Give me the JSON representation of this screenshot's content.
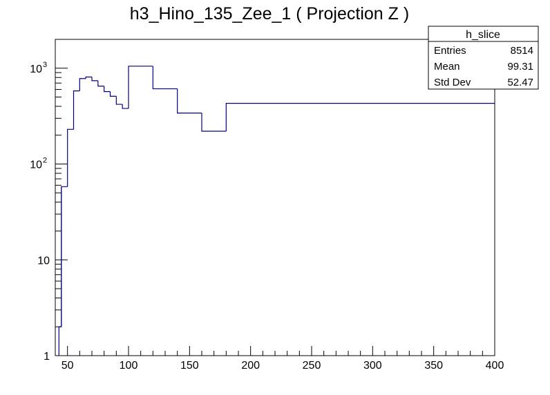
{
  "chart_data": {
    "type": "histogram",
    "title": "h3_Hino_135_Zee_1 ( Projection Z )",
    "xlabel": "",
    "ylabel": "",
    "xlim": [
      40,
      400
    ],
    "ylim": [
      1,
      2000
    ],
    "ylog": true,
    "line_color": "#000080",
    "x_ticks": [
      50,
      100,
      150,
      200,
      250,
      300,
      350,
      400
    ],
    "y_ticks": [
      {
        "value": 1,
        "label": "1"
      },
      {
        "value": 10,
        "label": "10"
      },
      {
        "value": 100,
        "label": "10",
        "exp": "2"
      },
      {
        "value": 1000,
        "label": "10",
        "exp": "3"
      }
    ],
    "bins": [
      {
        "lo": 43,
        "hi": 45,
        "value": 2
      },
      {
        "lo": 45,
        "hi": 50,
        "value": 58
      },
      {
        "lo": 50,
        "hi": 55,
        "value": 230
      },
      {
        "lo": 55,
        "hi": 60,
        "value": 580
      },
      {
        "lo": 60,
        "hi": 65,
        "value": 780
      },
      {
        "lo": 65,
        "hi": 70,
        "value": 810
      },
      {
        "lo": 70,
        "hi": 75,
        "value": 740
      },
      {
        "lo": 75,
        "hi": 80,
        "value": 650
      },
      {
        "lo": 80,
        "hi": 85,
        "value": 570
      },
      {
        "lo": 85,
        "hi": 90,
        "value": 510
      },
      {
        "lo": 90,
        "hi": 95,
        "value": 420
      },
      {
        "lo": 95,
        "hi": 100,
        "value": 380
      },
      {
        "lo": 100,
        "hi": 120,
        "value": 1050
      },
      {
        "lo": 120,
        "hi": 140,
        "value": 610
      },
      {
        "lo": 140,
        "hi": 160,
        "value": 340
      },
      {
        "lo": 160,
        "hi": 180,
        "value": 220
      },
      {
        "lo": 180,
        "hi": 400,
        "value": 430
      }
    ],
    "legend_position": "top-right"
  },
  "stats": {
    "name": "h_slice",
    "rows": [
      {
        "label": "Entries",
        "value": "8514"
      },
      {
        "label": "Mean",
        "value": "99.31"
      },
      {
        "label": "Std Dev",
        "value": "52.47"
      }
    ]
  }
}
